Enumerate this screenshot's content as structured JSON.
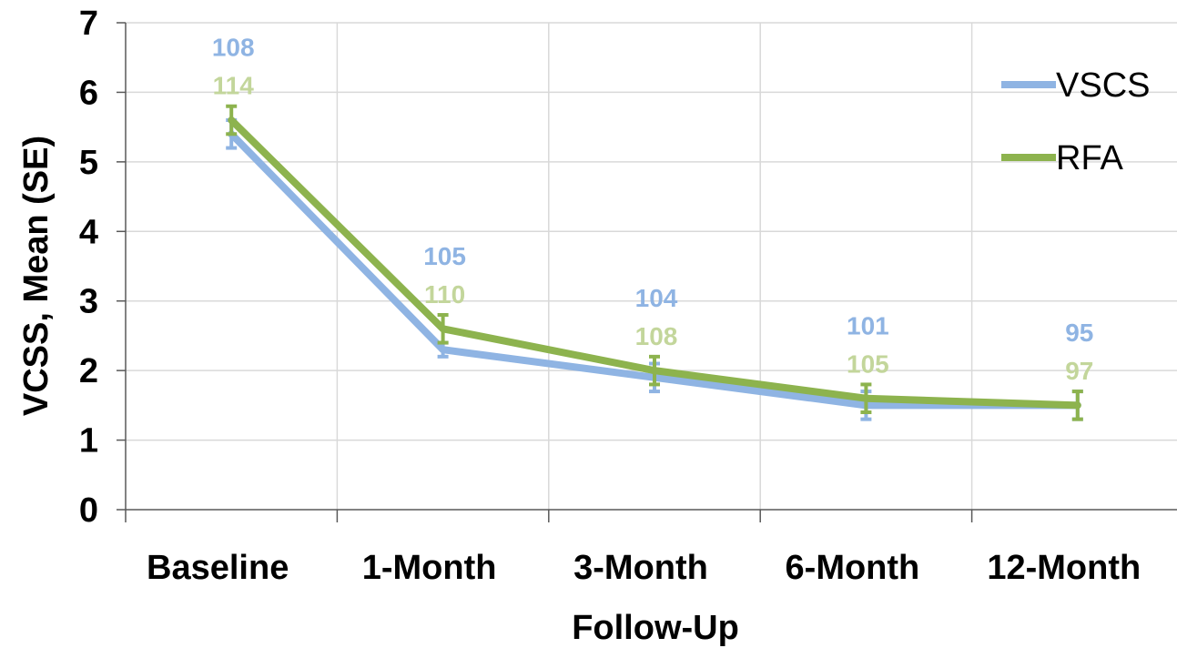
{
  "chart_data": {
    "type": "line",
    "categories": [
      "Baseline",
      "1-Month",
      "3-Month",
      "6-Month",
      "12-Month"
    ],
    "xlabel": "Follow-Up",
    "ylabel": "VCSS, Mean (SE)",
    "ylim": [
      0,
      7
    ],
    "yticks": [
      "0",
      "1",
      "2",
      "3",
      "4",
      "5",
      "6",
      "7"
    ],
    "grid": true,
    "legend_position": "right",
    "series": [
      {
        "name": "VSCS",
        "color": "#8fb4e3",
        "values": [
          5.4,
          2.3,
          1.9,
          1.5,
          1.5
        ],
        "error": [
          0.2,
          0.1,
          0.2,
          0.2,
          0.2
        ],
        "n_labels": [
          "108",
          "105",
          "104",
          "101",
          "95"
        ]
      },
      {
        "name": "RFA",
        "color": "#8db34e",
        "label_color": "#c3d69b",
        "values": [
          5.6,
          2.6,
          2.0,
          1.6,
          1.5
        ],
        "error": [
          0.2,
          0.2,
          0.2,
          0.2,
          0.2
        ],
        "n_labels": [
          "114",
          "110",
          "108",
          "105",
          "97"
        ]
      }
    ]
  }
}
